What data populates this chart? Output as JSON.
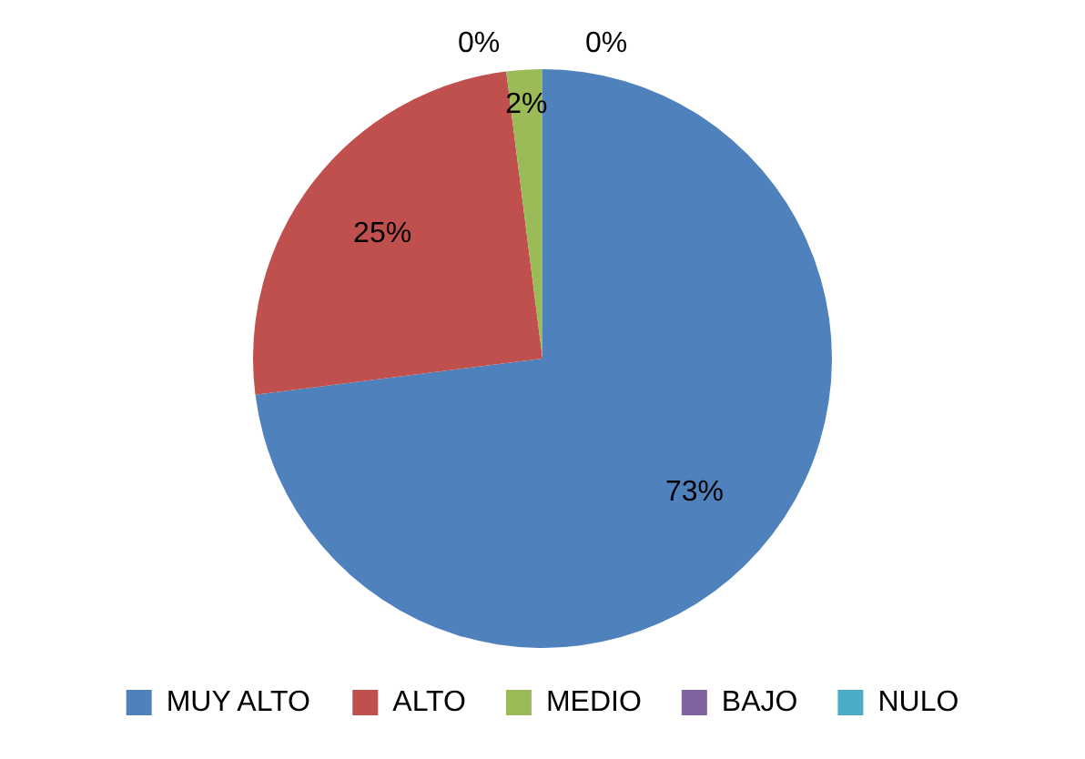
{
  "chart_data": {
    "type": "pie",
    "categories": [
      "MUY ALTO",
      "ALTO",
      "MEDIO",
      "BAJO",
      "NULO"
    ],
    "values": [
      73,
      25,
      2,
      0,
      0
    ],
    "colors": [
      "#4f81bd",
      "#c0504d",
      "#9bbb59",
      "#8064a2",
      "#4bacc6"
    ],
    "value_labels": [
      "73%",
      "25%",
      "2%",
      "0%",
      "0%"
    ],
    "legend": "bottom"
  }
}
